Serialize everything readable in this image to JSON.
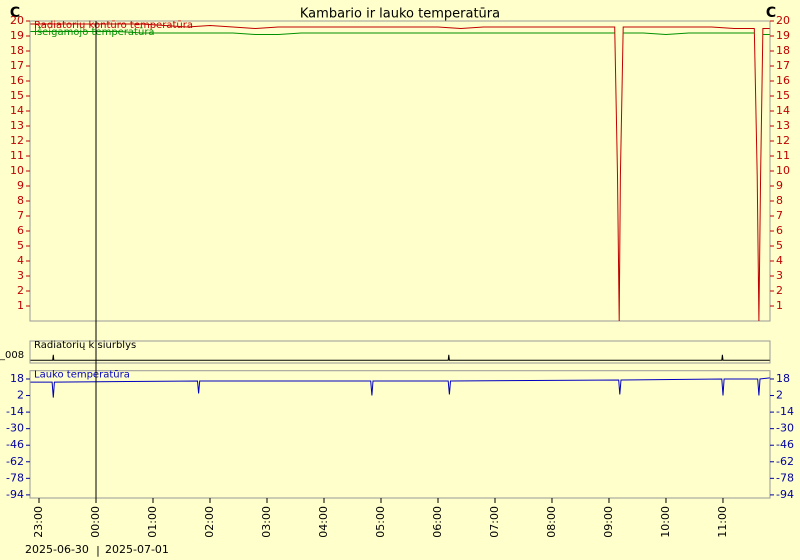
{
  "chart_data": [
    {
      "type": "line",
      "title": "Kambario ir lauko temperatūra",
      "y_unit": "C",
      "x": [
        -1.15,
        -0.8,
        -0.4,
        0,
        0.4,
        0.8,
        1.2,
        1.6,
        2,
        2.4,
        2.8,
        3.2,
        3.6,
        4,
        4.4,
        4.8,
        5.2,
        5.6,
        6,
        6.4,
        6.8,
        7.2,
        7.6,
        8,
        8.4,
        8.8,
        9.1,
        9.15,
        9.18,
        9.2,
        9.25,
        9.6,
        10,
        10.4,
        10.8,
        11.2,
        11.55,
        11.6,
        11.63,
        11.66,
        11.7,
        11.82
      ],
      "series": [
        {
          "name": "Radiatorių kontūro temperatūra",
          "color": "#c00000",
          "values": [
            19.8,
            19.8,
            19.8,
            19.8,
            19.8,
            19.8,
            19.7,
            19.6,
            19.7,
            19.6,
            19.5,
            19.6,
            19.6,
            19.6,
            19.6,
            19.6,
            19.6,
            19.6,
            19.6,
            19.5,
            19.6,
            19.6,
            19.6,
            19.6,
            19.6,
            19.6,
            19.6,
            9.7,
            0,
            9.7,
            19.6,
            19.6,
            19.6,
            19.6,
            19.6,
            19.5,
            19.5,
            9.7,
            0,
            9.7,
            19.5,
            19.5
          ]
        },
        {
          "name": "Išeigamojo temperatūra",
          "color": "#009000",
          "values": [
            19.3,
            19.3,
            19.3,
            19.3,
            19.3,
            19.2,
            19.2,
            19.2,
            19.2,
            19.2,
            19.1,
            19.1,
            19.2,
            19.2,
            19.2,
            19.2,
            19.2,
            19.2,
            19.2,
            19.2,
            19.2,
            19.2,
            19.2,
            19.2,
            19.2,
            19.2,
            19.2,
            null,
            null,
            null,
            19.2,
            19.2,
            19.1,
            19.2,
            19.2,
            19.2,
            19.2,
            null,
            null,
            null,
            19.1,
            19.1
          ]
        }
      ],
      "ylim": [
        0,
        20
      ],
      "yticks": [
        1,
        2,
        3,
        4,
        5,
        6,
        7,
        8,
        9,
        10,
        11,
        12,
        13,
        14,
        15,
        16,
        17,
        18,
        19,
        20
      ],
      "tick_color": "#c00000"
    },
    {
      "type": "line",
      "y_label": "_008",
      "x": [
        -1.15,
        -0.76,
        -0.75,
        -0.74,
        6.18,
        6.19,
        6.2,
        10.98,
        10.99,
        11.0,
        11.82
      ],
      "series": [
        {
          "name": "Radiatorių k.siurblys",
          "color": "#000000",
          "values": [
            0,
            0,
            1,
            0,
            0,
            1,
            0,
            0,
            1,
            0,
            0
          ]
        }
      ],
      "ylim": [
        -0.5,
        3.5
      ],
      "yticks": []
    },
    {
      "type": "line",
      "x": [
        -1.15,
        -0.77,
        -0.75,
        -0.73,
        1.78,
        1.8,
        1.82,
        4.82,
        4.84,
        4.86,
        6.18,
        6.2,
        6.22,
        9.17,
        9.19,
        9.21,
        10.98,
        11.0,
        11.02,
        11.61,
        11.63,
        11.65,
        11.82
      ],
      "series": [
        {
          "name": "Lauko temperatūra",
          "color": "#0000c0",
          "values": [
            15,
            15,
            0,
            15,
            16,
            4,
            16,
            16,
            2,
            16,
            16,
            3,
            16,
            17,
            3,
            17,
            18,
            2,
            18,
            18,
            2,
            18,
            19
          ]
        }
      ],
      "ylim": [
        -97,
        26
      ],
      "yticks": [
        18,
        2,
        -14,
        -30,
        -46,
        -62,
        -78,
        -94
      ],
      "tick_color": "#0000a0",
      "xlim": [
        -1.158,
        11.825
      ],
      "xticks": [
        {
          "value": -1,
          "label": "23:00"
        },
        {
          "value": 0,
          "label": "00:00"
        },
        {
          "value": 1,
          "label": "01:00"
        },
        {
          "value": 2,
          "label": "02:00"
        },
        {
          "value": 3,
          "label": "03:00"
        },
        {
          "value": 4,
          "label": "04:00"
        },
        {
          "value": 5,
          "label": "05:00"
        },
        {
          "value": 6,
          "label": "06:00"
        },
        {
          "value": 7,
          "label": "07:00"
        },
        {
          "value": 8,
          "label": "08:00"
        },
        {
          "value": 9,
          "label": "09:00"
        },
        {
          "value": 10,
          "label": "10:00"
        },
        {
          "value": 11,
          "label": "11:00"
        }
      ]
    }
  ],
  "date_labels": [
    "2025-06-30",
    "2025-07-01"
  ]
}
